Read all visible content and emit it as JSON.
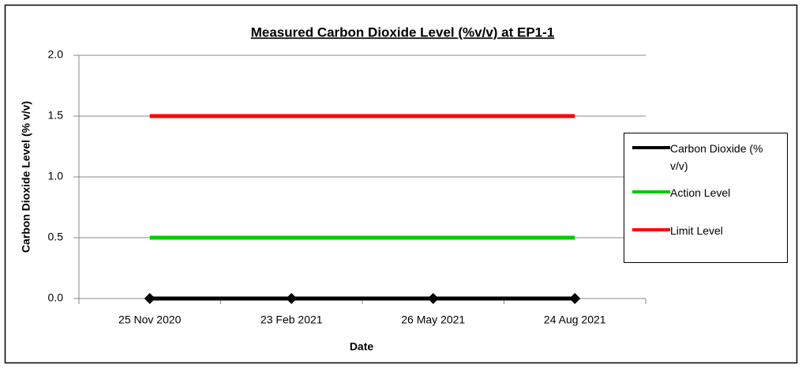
{
  "chart_data": {
    "type": "line",
    "title": "Measured Carbon Dioxide Level (%v/v) at EP1-1",
    "x_label": "Date",
    "y_label": "Carbon Dioxide Level (% v/v)",
    "categories": [
      "25 Nov 2020",
      "23 Feb 2021",
      "26 May 2021",
      "24 Aug 2021"
    ],
    "series": [
      {
        "name": "Carbon Dioxide (% v/v)",
        "color": "#000000",
        "marker": "diamond",
        "values": [
          0,
          0,
          0,
          0
        ]
      },
      {
        "name": "Action Level",
        "color": "#00cc00",
        "values": [
          0.5,
          0.5,
          0.5,
          0.5
        ]
      },
      {
        "name": "Limit Level",
        "color": "#ff0000",
        "values": [
          1.5,
          1.5,
          1.5,
          1.5
        ]
      }
    ],
    "ylim": [
      0,
      2
    ],
    "yticks": [
      {
        "value": 0,
        "label": "0.0"
      },
      {
        "value": 0.5,
        "label": "0.5"
      },
      {
        "value": 1,
        "label": "1.0"
      },
      {
        "value": 1.5,
        "label": "1.5"
      },
      {
        "value": 2,
        "label": "2.0"
      }
    ],
    "grid": true,
    "legend": "right"
  }
}
